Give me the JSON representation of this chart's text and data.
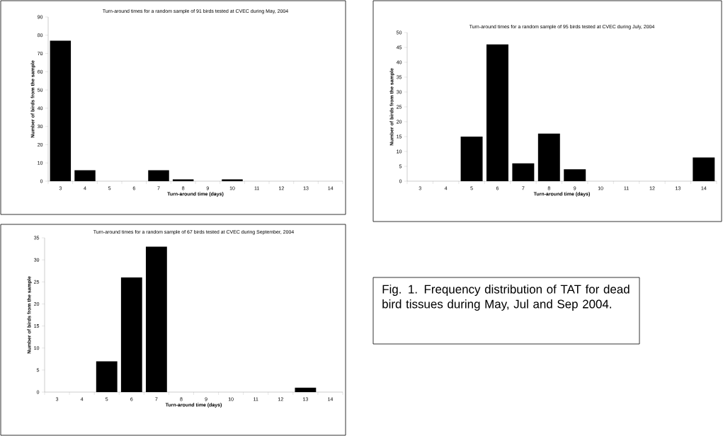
{
  "chart_data": [
    {
      "type": "bar",
      "title": "Turn-around times for a random sample of 91 birds tested at CVEC during May, 2004",
      "xlabel": "Turn-around time (days)",
      "ylabel": "Number of birds from the sample",
      "categories": [
        "3",
        "4",
        "5",
        "6",
        "7",
        "8",
        "9",
        "10",
        "11",
        "12",
        "13",
        "14"
      ],
      "values": [
        77,
        6,
        0,
        0,
        6,
        1,
        0,
        1,
        0,
        0,
        0,
        0
      ],
      "color": "#000000",
      "ylim": [
        0,
        90
      ],
      "yticks": [
        0,
        10,
        20,
        30,
        40,
        50,
        60,
        70,
        80,
        90
      ]
    },
    {
      "type": "bar",
      "title": "Turn-around times for a random sample of 95 birds tested at CVEC during July, 2004",
      "xlabel": "Turn-around time (days)",
      "ylabel": "Number of birds from the sample",
      "categories": [
        "3",
        "4",
        "5",
        "6",
        "7",
        "8",
        "9",
        "10",
        "11",
        "12",
        "13",
        "14"
      ],
      "values": [
        0,
        0,
        15,
        46,
        6,
        16,
        4,
        0,
        0,
        0,
        0,
        8
      ],
      "color": "#000000",
      "ylim": [
        0,
        50
      ],
      "yticks": [
        0,
        5,
        10,
        15,
        20,
        25,
        30,
        35,
        40,
        45,
        50
      ]
    },
    {
      "type": "bar",
      "title": "Turn-around times for a random sample of 67 birds tested at CVEC during September, 2004",
      "xlabel": "Turn-around time (days)",
      "ylabel": "Number of birds from the sample",
      "categories": [
        "3",
        "4",
        "5",
        "6",
        "7",
        "8",
        "9",
        "10",
        "11",
        "12",
        "13",
        "14"
      ],
      "values": [
        0,
        0,
        7,
        26,
        33,
        0,
        0,
        0,
        0,
        0,
        1,
        0
      ],
      "color": "#000000",
      "ylim": [
        0,
        35
      ],
      "yticks": [
        0,
        5,
        10,
        15,
        20,
        25,
        30,
        35
      ]
    },
    {
      "type": "other",
      "annotations": [
        "Fig. 1.  Frequency distribution of TAT for dead bird tissues during May, Jul and Sep 2004."
      ]
    }
  ]
}
